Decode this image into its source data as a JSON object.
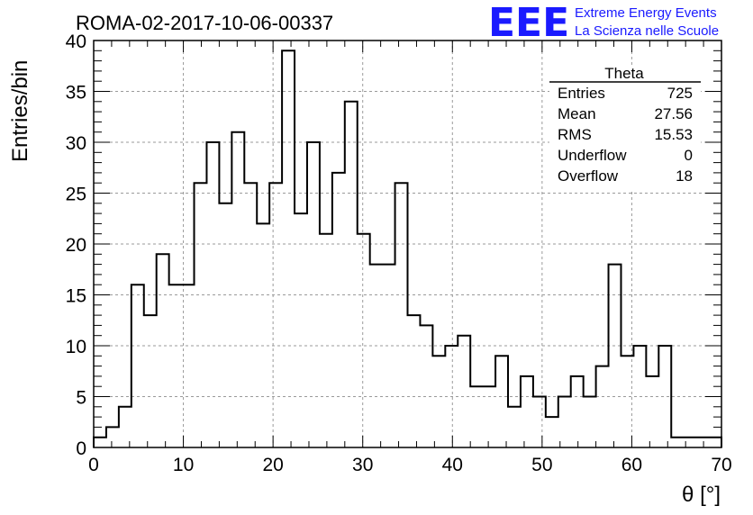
{
  "run_title": "ROMA-02-2017-10-06-00337",
  "logo": {
    "mark": "EEE",
    "line1": "Extreme Energy Events",
    "line2": "La Scienza nelle Scuole",
    "color": "#1a1aff"
  },
  "stats": {
    "title": "Theta",
    "rows": [
      {
        "label": "Entries",
        "value": "725"
      },
      {
        "label": "Mean",
        "value": "27.56"
      },
      {
        "label": "RMS",
        "value": "15.53"
      },
      {
        "label": "Underflow",
        "value": "0"
      },
      {
        "label": "Overflow",
        "value": "18"
      }
    ]
  },
  "chart_data": {
    "type": "bar",
    "title": "ROMA-02-2017-10-06-00337",
    "xlabel": "θ [°]",
    "ylabel": "Entries/bin",
    "xlim": [
      0,
      70
    ],
    "ylim": [
      0,
      40
    ],
    "x_ticks": [
      0,
      10,
      20,
      30,
      40,
      50,
      60,
      70
    ],
    "y_ticks": [
      0,
      5,
      10,
      15,
      20,
      25,
      30,
      35,
      40
    ],
    "grid": true,
    "bin_width": 1.4,
    "bin_edges_start": 0,
    "values": [
      1,
      2,
      4,
      16,
      13,
      19,
      16,
      16,
      26,
      30,
      24,
      31,
      26,
      22,
      26,
      39,
      23,
      30,
      21,
      27,
      34,
      21,
      18,
      18,
      26,
      13,
      12,
      9,
      10,
      11,
      6,
      6,
      9,
      4,
      7,
      5,
      3,
      5,
      7,
      5,
      8,
      18,
      9,
      10,
      7,
      10,
      1,
      1,
      1,
      1
    ]
  }
}
